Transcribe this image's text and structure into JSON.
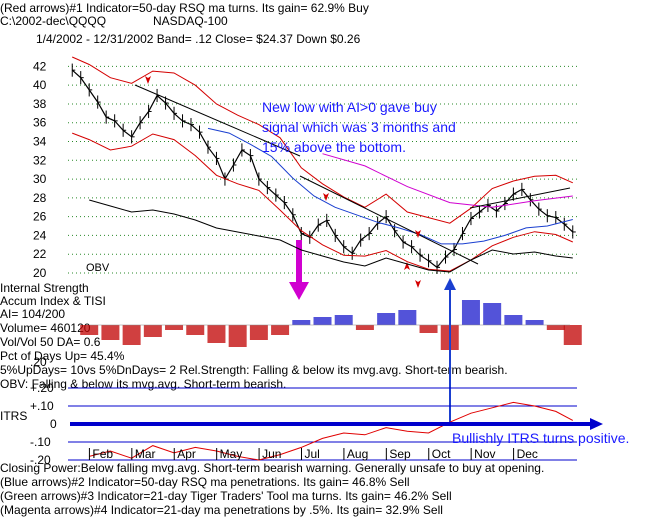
{
  "header": {
    "line1": "(Red arrows)#1 Indicator=50-day RSQ ma turns. Its gain= 62.9% Buy",
    "line2_left": "C:\\2002-dec\\QQQQ",
    "line2_right": "NASDAQ-100",
    "line3": "1/4/2002 - 12/31/2002  Band= .12  Close= $24.37  Down $0.26"
  },
  "annotations": {
    "callout_line1": "New low with AI>0 gave buy",
    "callout_line2": "signal which was 3 months and",
    "callout_line3": "15% above the bottom.",
    "itrs_callout": "Bullishly ITRS turns positive."
  },
  "panel_labels": {
    "obv": "OBV",
    "internal_strength": "Internal Strength",
    "accum_index": "Accum Index & TISI",
    "ai": "AI= 104/200",
    "volume": "Volume= 460120",
    "volvol": "Vol/Vol 50 DA= 0.6",
    "pct_up": "Pct of Days Up= 45.4%",
    "updays": "5%UpDays= 10vs 5%DnDays= 2   Rel.Strength: Falling & below its mvg.avg. Short-term bearish.",
    "obv_status": "OBV: Falling & below its mvg.avg. Short-term bearish.",
    "itrs": "ITRS",
    "overlap_value": ".20"
  },
  "footer": {
    "line1": "Closing Power:Below falling mvg.avg. Short-term bearish warning. Generally unsafe to buy at opening.",
    "line2": "(Blue arrows)#2 Indicator=50-day RSQ ma penetrations. Its gain= 46.8% Sell",
    "line3": "(Green arrows)#3 Indicator=21-day Tiger Traders' Tool ma turns. Its gain= 46.2% Sell",
    "line4": "(Magenta arrows)#4 Indicator=21-day ma penetrations by .5%. Its gain= 32.9% Sell"
  },
  "colors": {
    "price": "#000000",
    "bands": "#d40000",
    "ma_blue": "#1a3fd0",
    "magenta": "#d000d0",
    "callout": "#1a1aff",
    "ai_pos": "#1a1acc",
    "ai_neg": "#c00000",
    "itrs_line": "#e00000",
    "zero_line": "#0000cc"
  },
  "chart_data": [
    {
      "type": "line",
      "panel": "price",
      "y_ticks": [
        "42",
        "40",
        "38",
        "36",
        "34",
        "32",
        "30",
        "28",
        "26",
        "24",
        "22",
        "20"
      ],
      "ylim": [
        20,
        43
      ],
      "x_labels": [
        "Feb",
        "Mar",
        "Apr",
        "May",
        "Jun",
        "Jul",
        "Aug",
        "Sep",
        "Oct",
        "Nov",
        "Dec"
      ],
      "x_range_months": [
        0,
        12
      ],
      "series": [
        {
          "role": "close",
          "x": [
            0.1,
            0.3,
            0.5,
            0.7,
            0.9,
            1.1,
            1.3,
            1.5,
            1.7,
            1.9,
            2.1,
            2.3,
            2.5,
            2.7,
            2.9,
            3.1,
            3.3,
            3.5,
            3.7,
            3.9,
            4.1,
            4.3,
            4.5,
            4.7,
            4.9,
            5.1,
            5.3,
            5.5,
            5.7,
            5.9,
            6.1,
            6.3,
            6.5,
            6.7,
            6.9,
            7.1,
            7.3,
            7.5,
            7.7,
            7.9,
            8.1,
            8.3,
            8.5,
            8.7,
            8.9,
            9.1,
            9.3,
            9.5,
            9.7,
            9.9,
            10.1,
            10.3,
            10.5,
            10.7,
            10.9,
            11.1,
            11.3,
            11.5,
            11.7,
            11.9
          ],
          "values": [
            41.6,
            40.8,
            39.5,
            38.2,
            36.6,
            36.2,
            35.2,
            34.5,
            36.0,
            37.2,
            38.9,
            38.1,
            37.0,
            36.2,
            35.8,
            35.0,
            33.4,
            32.2,
            30.0,
            31.5,
            33.1,
            32.5,
            30.0,
            29.1,
            28.3,
            27.5,
            26.2,
            24.2,
            23.8,
            25.1,
            25.6,
            24.0,
            22.8,
            22.1,
            23.5,
            24.2,
            25.3,
            26.0,
            24.5,
            23.3,
            22.8,
            21.9,
            21.3,
            20.6,
            21.7,
            22.5,
            24.2,
            25.8,
            26.5,
            27.2,
            26.6,
            27.4,
            28.4,
            28.9,
            27.8,
            26.8,
            26.1,
            25.9,
            25.2,
            24.37
          ]
        },
        {
          "role": "upper_band",
          "x": [
            0.1,
            0.5,
            1.0,
            1.5,
            2.0,
            2.5,
            3.0,
            3.5,
            4.0,
            4.5,
            5.0,
            5.5,
            6.0,
            6.5,
            7.0,
            7.5,
            8.0,
            8.5,
            9.0,
            9.5,
            10.0,
            10.5,
            11.0,
            11.5,
            11.9
          ],
          "values": [
            43,
            42.2,
            40.8,
            40.2,
            41.5,
            41.3,
            40,
            38,
            36.8,
            35.8,
            34.4,
            31.2,
            29.5,
            28.1,
            27,
            28.4,
            26.5,
            25.9,
            25.3,
            26.9,
            29,
            29.8,
            30.3,
            30.4,
            29.6
          ]
        },
        {
          "role": "lower_band",
          "x": [
            0.1,
            0.5,
            1.0,
            1.5,
            2.0,
            2.5,
            3.0,
            3.5,
            4.0,
            4.5,
            5.0,
            5.5,
            6.0,
            6.5,
            7.0,
            7.5,
            8.0,
            8.5,
            9.0,
            9.5,
            10.0,
            10.5,
            11.0,
            11.5,
            11.9
          ],
          "values": [
            34.9,
            34.2,
            33.1,
            33.5,
            34.8,
            34.2,
            32.5,
            30.4,
            29.5,
            28.8,
            26.7,
            24.5,
            23,
            21.9,
            21.8,
            22.4,
            21.2,
            20.4,
            20.2,
            21.4,
            22.9,
            23.8,
            24.4,
            24.1,
            23.3
          ]
        },
        {
          "role": "ma_blue",
          "x": [
            3.3,
            3.8,
            4.3,
            4.8,
            5.3,
            5.8,
            6.3,
            6.8,
            7.3,
            7.8,
            8.3,
            8.8,
            9.3,
            9.8,
            10.3,
            10.8,
            11.3,
            11.9
          ],
          "values": [
            35.4,
            34.9,
            33.7,
            32.4,
            30.1,
            28.2,
            27,
            26.2,
            25.4,
            24.8,
            24.1,
            23.1,
            23.1,
            23.4,
            24,
            24.8,
            25,
            25.7
          ]
        },
        {
          "role": "ma_magenta",
          "x": [
            6.0,
            7.0,
            8.0,
            9.0,
            10.0,
            11.0,
            11.9
          ],
          "values": [
            32.7,
            31.4,
            29.2,
            27.5,
            27,
            27.7,
            28.2
          ]
        }
      ]
    },
    {
      "type": "line",
      "panel": "obv",
      "series": [
        {
          "role": "obv",
          "x": [
            0.5,
            1.0,
            1.5,
            2.0,
            2.5,
            3.0,
            3.5,
            4.0,
            4.5,
            5.0,
            5.5,
            6.0,
            6.5,
            7.0,
            7.5,
            8.0,
            8.5,
            9.0,
            9.5,
            10.0,
            10.5,
            11.0,
            11.5,
            11.9
          ],
          "values": [
            80,
            74,
            68,
            70,
            66,
            60,
            52,
            48,
            44,
            40,
            30,
            24,
            18,
            14,
            22,
            16,
            10,
            8,
            20,
            30,
            26,
            28,
            24,
            22
          ]
        }
      ]
    },
    {
      "type": "bar",
      "panel": "accum_index",
      "x": [
        0.5,
        1.0,
        1.5,
        2.0,
        2.5,
        3.0,
        3.5,
        4.0,
        4.5,
        5.0,
        5.5,
        6.0,
        6.5,
        7.0,
        7.5,
        8.0,
        8.5,
        9.0,
        9.5,
        10.0,
        10.5,
        11.0,
        11.5,
        11.9
      ],
      "values": [
        -0.1,
        -0.15,
        -0.2,
        -0.12,
        -0.05,
        -0.1,
        -0.18,
        -0.22,
        -0.15,
        -0.1,
        0.05,
        0.08,
        0.1,
        -0.05,
        0.12,
        0.15,
        -0.08,
        -0.25,
        0.25,
        0.22,
        0.1,
        0.05,
        -0.05,
        -0.2
      ],
      "ylim": [
        -0.3,
        0.3
      ]
    },
    {
      "type": "line",
      "panel": "itrs",
      "y_ticks": [
        "+.20",
        "+.10",
        "0",
        "-.10",
        "-.20"
      ],
      "ylim": [
        -0.2,
        0.2
      ],
      "series": [
        {
          "role": "itrs",
          "x": [
            0.5,
            1.0,
            1.5,
            2.0,
            2.5,
            3.0,
            3.5,
            4.0,
            4.5,
            5.0,
            5.5,
            6.0,
            6.5,
            7.0,
            7.5,
            8.0,
            8.5,
            9.0,
            9.5,
            10.0,
            10.5,
            11.0,
            11.5,
            11.9
          ],
          "values": [
            -0.18,
            -0.15,
            -0.19,
            -0.12,
            -0.16,
            -0.13,
            -0.15,
            -0.18,
            -0.2,
            -0.17,
            -0.13,
            -0.08,
            -0.05,
            -0.06,
            -0.02,
            -0.04,
            -0.05,
            0.01,
            0.06,
            0.09,
            0.12,
            0.1,
            0.07,
            0.02
          ]
        }
      ]
    }
  ]
}
